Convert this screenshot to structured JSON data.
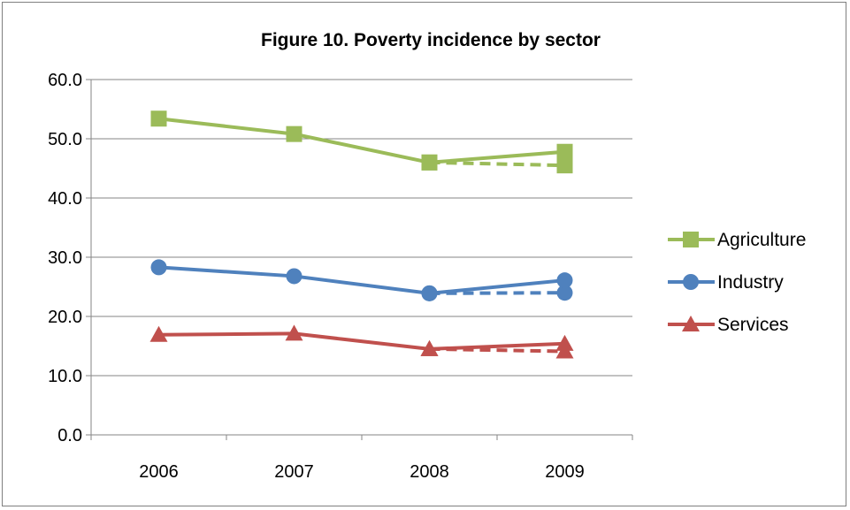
{
  "chart_data": {
    "type": "line",
    "title": "Figure 10. Poverty incidence by sector",
    "xlabel": "",
    "ylabel": "",
    "categories": [
      "2006",
      "2007",
      "2008",
      "2009"
    ],
    "y_ticks": [
      "0.0",
      "10.0",
      "20.0",
      "30.0",
      "40.0",
      "50.0",
      "60.0"
    ],
    "ylim": [
      0,
      60
    ],
    "grid": "horizontal",
    "legend_position": "right",
    "series": [
      {
        "name": "Agriculture",
        "color": "#9bbb59",
        "marker": "square",
        "values": [
          53.4,
          50.8,
          46.0,
          47.8
        ]
      },
      {
        "name": "Industry",
        "color": "#4f81bd",
        "marker": "circle",
        "values": [
          28.3,
          26.8,
          23.9,
          26.1
        ]
      },
      {
        "name": "Services",
        "color": "#c0504d",
        "marker": "triangle",
        "values": [
          16.9,
          17.1,
          14.5,
          15.4
        ]
      }
    ],
    "alternate_series": [
      {
        "series": "Agriculture",
        "style": "dashed",
        "color": "#9bbb59",
        "marker": "square",
        "x": [
          "2008",
          "2009"
        ],
        "values": [
          46.0,
          45.5
        ]
      },
      {
        "series": "Industry",
        "style": "dashed",
        "color": "#4f81bd",
        "marker": "circle",
        "x": [
          "2008",
          "2009"
        ],
        "values": [
          23.9,
          24.0
        ]
      },
      {
        "series": "Services",
        "style": "dashed",
        "color": "#c0504d",
        "marker": "triangle",
        "x": [
          "2008",
          "2009"
        ],
        "values": [
          14.5,
          14.1
        ]
      }
    ]
  }
}
